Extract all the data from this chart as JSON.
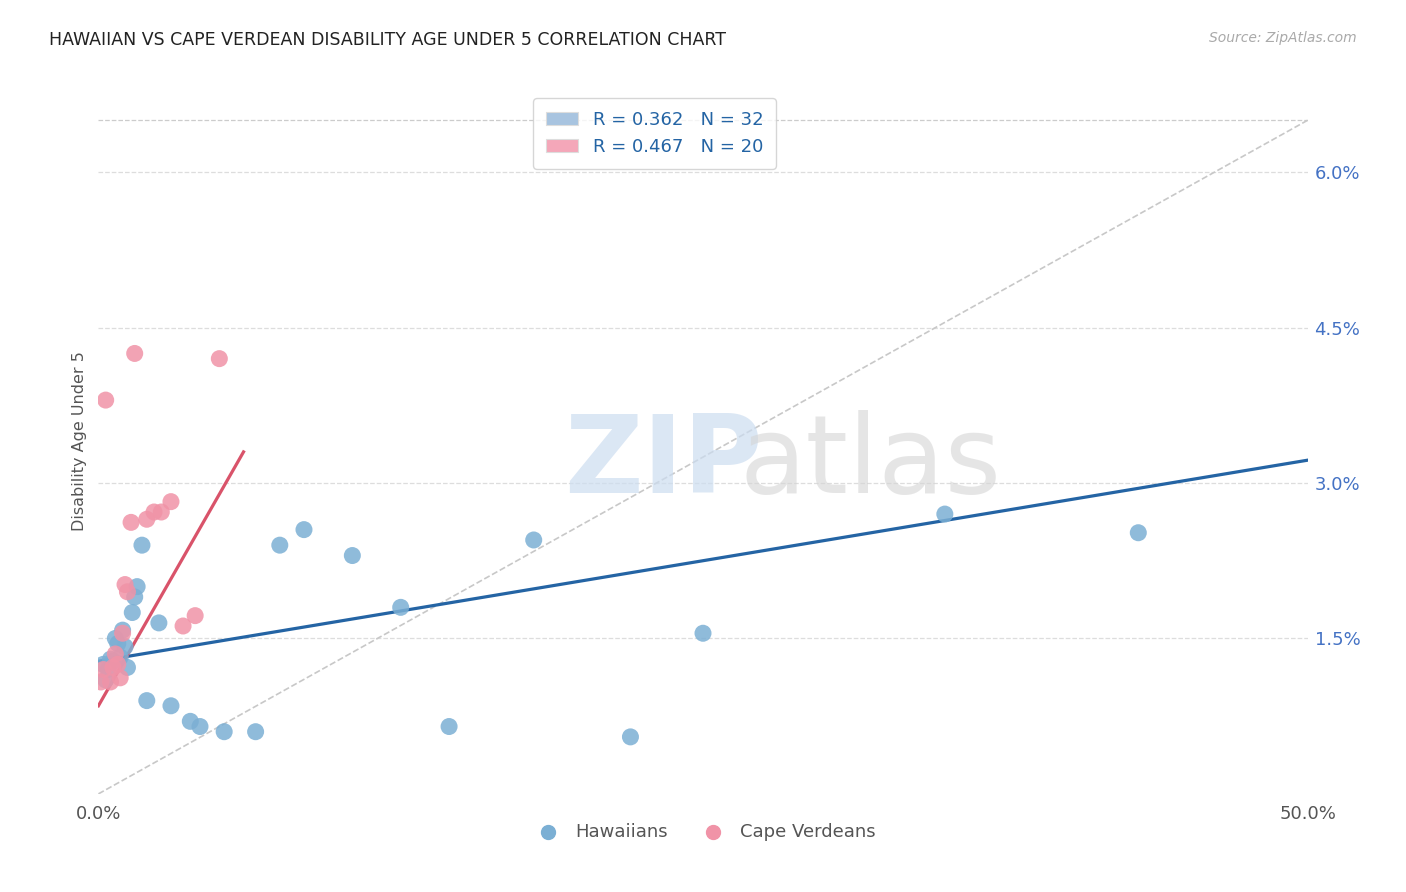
{
  "title": "HAWAIIAN VS CAPE VERDEAN DISABILITY AGE UNDER 5 CORRELATION CHART",
  "source": "Source: ZipAtlas.com",
  "ylabel": "Disability Age Under 5",
  "xlim": [
    0.0,
    50.0
  ],
  "ylim": [
    0.0,
    6.8
  ],
  "plot_ymin": 0.0,
  "plot_ymax": 6.5,
  "ytick_vals": [
    1.5,
    3.0,
    4.5,
    6.0
  ],
  "ytick_labels": [
    "1.5%",
    "3.0%",
    "4.5%",
    "6.0%"
  ],
  "legend_label1": "R = 0.362   N = 32",
  "legend_label2": "R = 0.467   N = 20",
  "legend_color1": "#a8c4e0",
  "legend_color2": "#f4a7b9",
  "hawaiian_color": "#7bafd4",
  "capeverdean_color": "#f093a7",
  "hawaiian_line_color": "#2464a4",
  "capeverdean_line_color": "#d9536a",
  "bottom_label1": "Hawaiians",
  "bottom_label2": "Cape Verdeans",
  "hawaiian_x": [
    0.2,
    0.3,
    0.4,
    0.5,
    0.6,
    0.7,
    0.8,
    0.9,
    1.0,
    1.1,
    1.2,
    1.4,
    1.5,
    1.6,
    1.8,
    2.0,
    2.5,
    3.0,
    3.8,
    4.2,
    5.2,
    6.5,
    7.5,
    8.5,
    10.5,
    12.5,
    14.5,
    18.0,
    22.0,
    25.0,
    35.0,
    43.0
  ],
  "hawaiian_y": [
    1.25,
    1.1,
    1.2,
    1.3,
    1.28,
    1.5,
    1.45,
    1.32,
    1.58,
    1.42,
    1.22,
    1.75,
    1.9,
    2.0,
    2.4,
    0.9,
    1.65,
    0.85,
    0.7,
    0.65,
    0.6,
    0.6,
    2.4,
    2.55,
    2.3,
    1.8,
    0.65,
    2.45,
    0.55,
    1.55,
    2.7,
    2.52
  ],
  "capeverdean_x": [
    0.1,
    0.2,
    0.3,
    0.5,
    0.6,
    0.7,
    0.8,
    0.9,
    1.0,
    1.1,
    1.2,
    1.35,
    1.5,
    2.0,
    2.3,
    2.6,
    3.0,
    3.5,
    4.0,
    5.0
  ],
  "capeverdean_y": [
    1.08,
    1.2,
    3.8,
    1.08,
    1.22,
    1.35,
    1.25,
    1.12,
    1.55,
    2.02,
    1.95,
    2.62,
    4.25,
    2.65,
    2.72,
    2.72,
    2.82,
    1.62,
    1.72,
    4.2
  ],
  "ref_line_x": [
    0,
    50
  ],
  "ref_line_y": [
    0,
    6.5
  ],
  "blue_line_x0": 0,
  "blue_line_y0": 1.28,
  "blue_line_x1": 50,
  "blue_line_y1": 3.22,
  "pink_line_x0": 0.0,
  "pink_line_y0": 0.85,
  "pink_line_x1": 6.0,
  "pink_line_y1": 3.3
}
